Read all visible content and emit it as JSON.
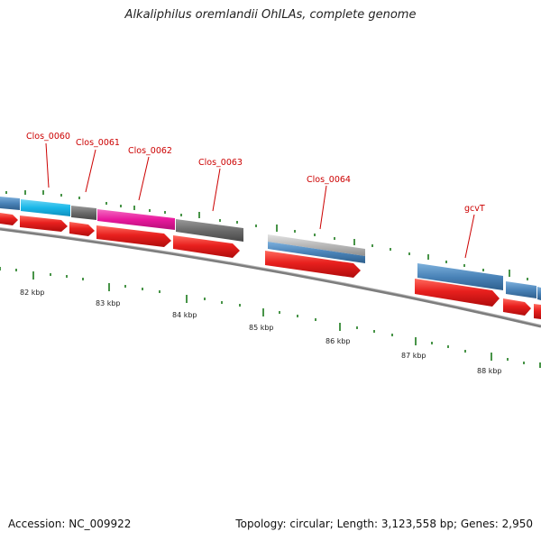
{
  "title": "Alkaliphilus oremlandii OhILAs, complete genome",
  "footer": {
    "accession": "Accession: NC_009922",
    "stats": "Topology: circular; Length: 3,123,558 bp; Genes: 2,950"
  },
  "colors": {
    "red": "#e8201e",
    "blue": "#4a83b8",
    "cyan": "#19b7e8",
    "magenta": "#e8189c",
    "dark_gray": "#6b6b6b",
    "light_gray": "#b8b8b8",
    "tick": "#1a7a1a",
    "label": "#cc0000",
    "backbone": "#8a8a8a"
  },
  "gene_labels": [
    "Clos_0060",
    "Clos_0061",
    "Clos_0062",
    "Clos_0063",
    "Clos_0064",
    "gcvT"
  ],
  "scale_labels": [
    "82 kbp",
    "83 kbp",
    "84 kbp",
    "85 kbp",
    "86 kbp",
    "87 kbp",
    "88 kbp"
  ]
}
